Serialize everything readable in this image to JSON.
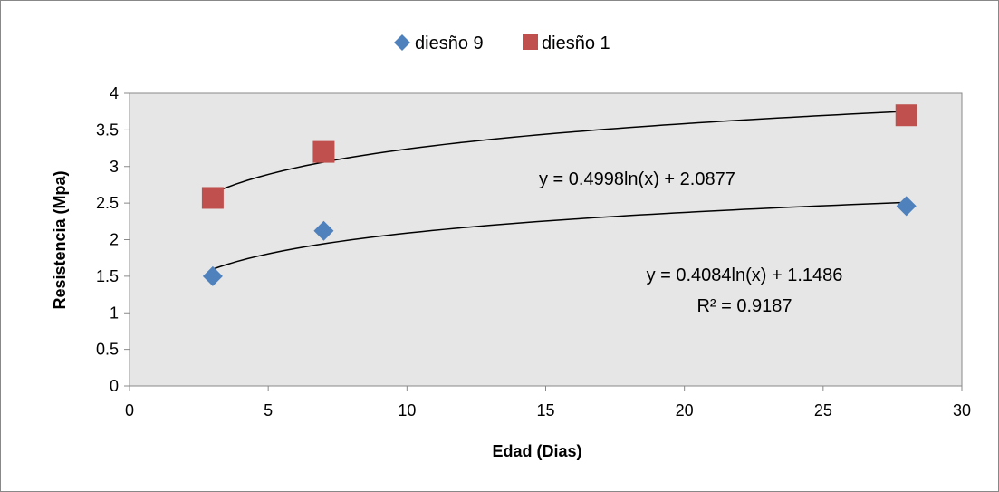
{
  "chart_data": {
    "type": "scatter",
    "title": "",
    "xlabel": "Edad (Dias)",
    "ylabel": "Resistencia (Mpa)",
    "xlim": [
      0,
      30
    ],
    "ylim": [
      0,
      4
    ],
    "x_ticks": [
      0,
      5,
      10,
      15,
      20,
      25,
      30
    ],
    "x_tick_labels": [
      "0",
      "5",
      "10",
      "15",
      "20",
      "25",
      "30"
    ],
    "y_ticks": [
      0,
      0.5,
      1,
      1.5,
      2,
      2.5,
      3,
      3.5,
      4
    ],
    "y_tick_labels": [
      "0",
      "0.5",
      "1",
      "1.5",
      "2",
      "2.5",
      "3",
      "3.5",
      "4"
    ],
    "grid": false,
    "plot_background": "#e6e6e6",
    "legend_position": "top-center",
    "series": [
      {
        "name": "diesño 9",
        "marker": "diamond",
        "color": "#4f81bd",
        "x": [
          3,
          7,
          28
        ],
        "y": [
          1.5,
          2.12,
          2.46
        ],
        "trendline": {
          "type": "logarithmic",
          "a": 0.4084,
          "b": 1.1486,
          "x_range": [
            3,
            28
          ]
        }
      },
      {
        "name": "diesño 1",
        "marker": "square",
        "color": "#c0504d",
        "x": [
          3,
          7,
          28
        ],
        "y": [
          2.57,
          3.2,
          3.7
        ],
        "trendline": {
          "type": "logarithmic",
          "a": 0.4998,
          "b": 2.0877,
          "x_range": [
            3,
            28
          ]
        }
      }
    ],
    "annotations": [
      {
        "id": "eq1",
        "lines": [
          "y = 0.4998ln(x) + 2.0877"
        ]
      },
      {
        "id": "eq2",
        "lines": [
          "y = 0.4084ln(x) + 1.1486",
          "R² = 0.9187"
        ]
      }
    ]
  }
}
